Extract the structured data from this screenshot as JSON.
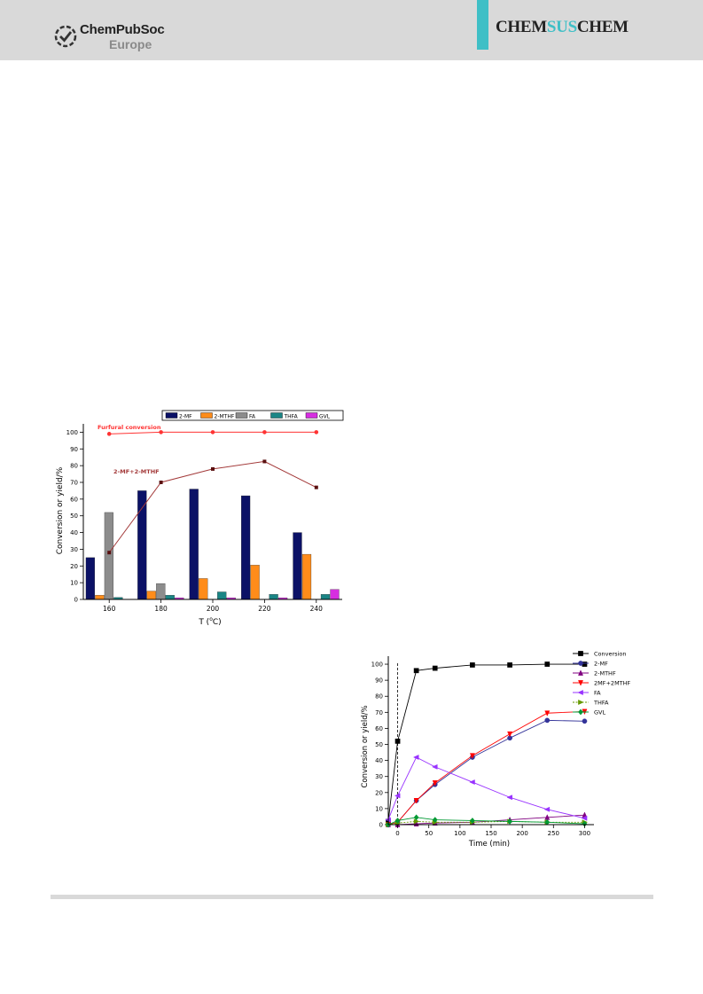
{
  "header": {
    "publisher_main": "ChemPubSoc",
    "publisher_sub": "Europe",
    "journal_pre": "CHEM",
    "journal_mid": "SUS",
    "journal_post": "CHEM",
    "band_color": "#d9d9d9",
    "accent_color": "#3fbfc6"
  },
  "chart_data": [
    {
      "type": "bar",
      "categories": [
        "160",
        "180",
        "200",
        "220",
        "240"
      ],
      "series": [
        {
          "name": "2-MF",
          "color": "#0b1166",
          "values": [
            25,
            65,
            66,
            62,
            40
          ]
        },
        {
          "name": "2-MTHF",
          "color": "#ff8c1a",
          "values": [
            2.5,
            5,
            12.5,
            20.5,
            27
          ]
        },
        {
          "name": "FA",
          "color": "#8c8c8c",
          "values": [
            52,
            9.5,
            0,
            0,
            0
          ]
        },
        {
          "name": "THFA",
          "color": "#1a8585",
          "values": [
            1.2,
            2.5,
            4.5,
            3,
            3
          ]
        },
        {
          "name": "GVL",
          "color": "#d62ee0",
          "values": [
            0,
            1,
            1,
            1,
            6
          ]
        }
      ],
      "lines": [
        {
          "label": "Furfural conversion",
          "color": "#ff3333",
          "values": [
            99,
            100,
            100,
            100,
            100
          ]
        },
        {
          "label": "2-MF+2-MTHF",
          "color": "#a33a3a",
          "values": [
            28,
            70,
            78,
            82.5,
            67
          ]
        }
      ],
      "xlabel_main": "T (",
      "xlabel_sup": "o",
      "xlabel_end": "C)",
      "ylabel": "Conversion or yield/%",
      "ylim": [
        0,
        105
      ],
      "yticks": [
        "0",
        "10",
        "20",
        "30",
        "40",
        "50",
        "60",
        "70",
        "80",
        "90",
        "100"
      ],
      "legend": "top"
    },
    {
      "type": "line",
      "xlabel": "Time (min)",
      "ylabel": "Conversion or yield/%",
      "xlim": [
        -15,
        315
      ],
      "ylim": [
        0,
        105
      ],
      "xticks": [
        "0",
        "50",
        "100",
        "150",
        "200",
        "250",
        "300"
      ],
      "yticks": [
        "0",
        "10",
        "20",
        "30",
        "40",
        "50",
        "60",
        "70",
        "80",
        "90",
        "100"
      ],
      "vline_x": 0,
      "legend": "top-right",
      "series": [
        {
          "name": "Conversion",
          "color": "#000000",
          "marker": "square",
          "dash": false,
          "x": [
            -15,
            0,
            30,
            60,
            120,
            180,
            240,
            300
          ],
          "y": [
            2,
            52,
            96,
            97.5,
            99.5,
            99.5,
            100,
            100
          ]
        },
        {
          "name": "2-MF",
          "color": "#333399",
          "marker": "circle",
          "dash": false,
          "x": [
            -15,
            0,
            30,
            60,
            120,
            180,
            240,
            300
          ],
          "y": [
            0,
            1.5,
            15,
            25,
            42,
            54,
            65,
            64.5
          ]
        },
        {
          "name": "2-MTHF",
          "color": "#800080",
          "marker": "triangle-up",
          "dash": false,
          "x": [
            -15,
            0,
            30,
            60,
            120,
            180,
            240,
            300
          ],
          "y": [
            0,
            0,
            0.5,
            1,
            1.5,
            3,
            4.5,
            6
          ]
        },
        {
          "name": "2MF+2MTHF",
          "color": "#ff0000",
          "marker": "triangle-down",
          "dash": false,
          "x": [
            -15,
            0,
            30,
            60,
            120,
            180,
            240,
            300
          ],
          "y": [
            0,
            1.5,
            15,
            26,
            43,
            56.5,
            69.5,
            70.5
          ]
        },
        {
          "name": "FA",
          "color": "#9933ff",
          "marker": "triangle-left",
          "dash": false,
          "x": [
            -15,
            0,
            30,
            60,
            120,
            180,
            240,
            300
          ],
          "y": [
            3,
            18,
            42,
            36,
            26.5,
            17,
            9.5,
            4
          ]
        },
        {
          "name": "THFA",
          "color": "#669900",
          "marker": "triangle-right",
          "dash": true,
          "x": [
            -15,
            0,
            30,
            60,
            120,
            180,
            240,
            300
          ],
          "y": [
            0,
            1,
            2,
            1.5,
            1.5,
            2,
            1.5,
            1.5
          ]
        },
        {
          "name": "GVL",
          "color": "#009933",
          "marker": "diamond",
          "dash": false,
          "x": [
            -15,
            0,
            30,
            60,
            120,
            180,
            240,
            300
          ],
          "y": [
            0,
            2.5,
            4.5,
            3,
            2.5,
            2,
            1.5,
            0.5
          ]
        }
      ]
    }
  ]
}
